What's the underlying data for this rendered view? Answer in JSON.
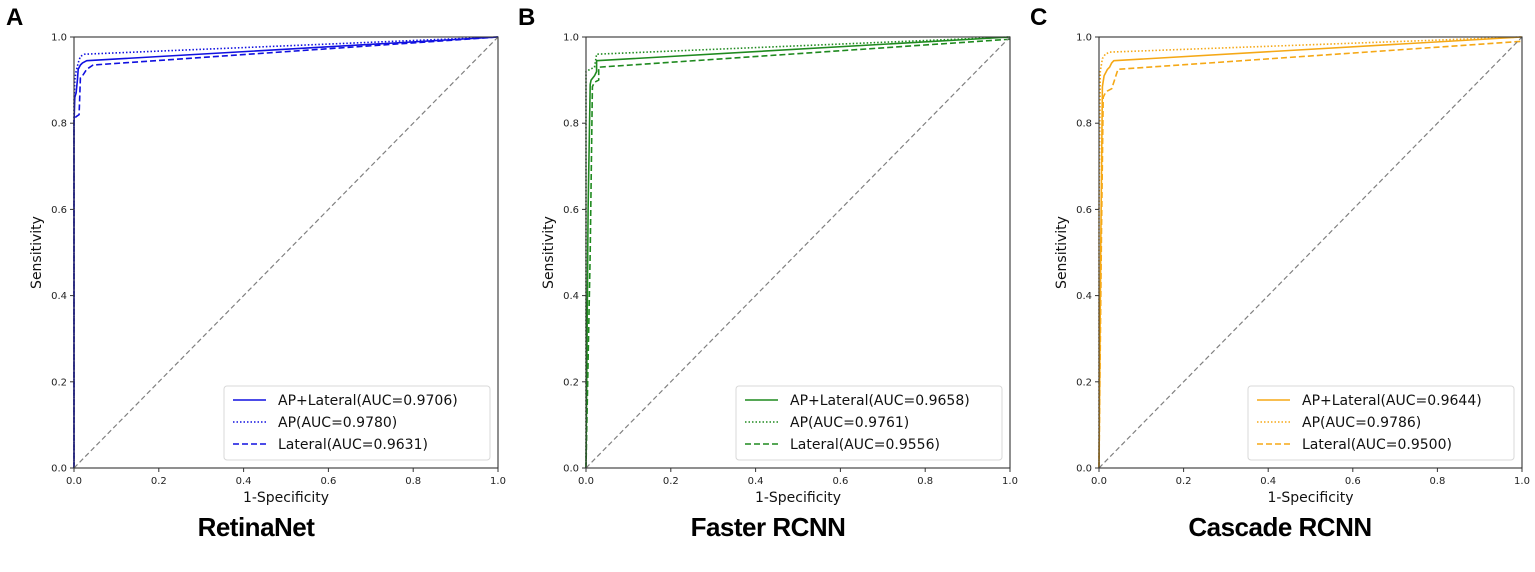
{
  "figure": {
    "panels": [
      {
        "letter": "A",
        "title": "RetinaNet",
        "color": "#1010e0"
      },
      {
        "letter": "B",
        "title": "Faster RCNN",
        "color": "#1f8a1f"
      },
      {
        "letter": "C",
        "title": "Cascade RCNN",
        "color": "#f5a816"
      }
    ]
  },
  "chart_data": [
    {
      "type": "line",
      "panel": "A",
      "title": "RetinaNet",
      "xlabel": "1-Specificity",
      "ylabel": "Sensitivity",
      "xlim": [
        0,
        1
      ],
      "ylim": [
        0,
        1
      ],
      "xticks": [
        "0.0",
        "0.2",
        "0.4",
        "0.6",
        "0.8",
        "1.0"
      ],
      "yticks": [
        "0.0",
        "0.2",
        "0.4",
        "0.6",
        "0.8",
        "1.0"
      ],
      "grid": false,
      "legend_position": "lower right",
      "color": "#1010e0",
      "series": [
        {
          "name": "AP+Lateral(AUC=0.9706)",
          "style": "solid",
          "x": [
            0,
            0,
            0.002,
            0.005,
            0.008,
            0.01,
            0.015,
            0.02,
            0.03,
            1.0
          ],
          "y": [
            0,
            0.8,
            0.86,
            0.87,
            0.9,
            0.925,
            0.935,
            0.94,
            0.945,
            1.0
          ]
        },
        {
          "name": "AP(AUC=0.9780)",
          "style": "dotted",
          "x": [
            0,
            0,
            0.002,
            0.005,
            0.01,
            0.015,
            0.025,
            1.0
          ],
          "y": [
            0,
            0.85,
            0.9,
            0.92,
            0.94,
            0.955,
            0.96,
            1.0
          ]
        },
        {
          "name": "Lateral(AUC=0.9631)",
          "style": "dashed",
          "x": [
            0,
            0,
            0.005,
            0.012,
            0.015,
            0.02,
            0.03,
            0.045,
            1.0
          ],
          "y": [
            0,
            0.81,
            0.815,
            0.82,
            0.905,
            0.91,
            0.925,
            0.935,
            1.0
          ]
        },
        {
          "name": "chance",
          "style": "dashed-gray",
          "x": [
            0,
            1
          ],
          "y": [
            0,
            1
          ]
        }
      ]
    },
    {
      "type": "line",
      "panel": "B",
      "title": "Faster RCNN",
      "xlabel": "1-Specificity",
      "ylabel": "Sensitivity",
      "xlim": [
        0,
        1
      ],
      "ylim": [
        0,
        1
      ],
      "xticks": [
        "0.0",
        "0.2",
        "0.4",
        "0.6",
        "0.8",
        "1.0"
      ],
      "yticks": [
        "0.0",
        "0.2",
        "0.4",
        "0.6",
        "0.8",
        "1.0"
      ],
      "grid": false,
      "legend_position": "lower right",
      "color": "#1f8a1f",
      "series": [
        {
          "name": "AP+Lateral(AUC=0.9658)",
          "style": "solid",
          "x": [
            0,
            0.005,
            0.01,
            0.012,
            0.02,
            0.025,
            0.025,
            1.0
          ],
          "y": [
            0,
            0.6,
            0.89,
            0.9,
            0.91,
            0.92,
            0.945,
            1.0
          ]
        },
        {
          "name": "AP(AUC=0.9761)",
          "style": "dotted",
          "x": [
            0,
            0,
            0.01,
            0.02,
            0.025,
            1.0
          ],
          "y": [
            0,
            0.92,
            0.925,
            0.93,
            0.96,
            1.0
          ]
        },
        {
          "name": "Lateral(AUC=0.9556)",
          "style": "dashed",
          "x": [
            0,
            0.01,
            0.015,
            0.02,
            0.03,
            0.03,
            1.0
          ],
          "y": [
            0,
            0.5,
            0.885,
            0.895,
            0.9,
            0.93,
            0.995
          ]
        },
        {
          "name": "chance",
          "style": "dashed-gray",
          "x": [
            0,
            1
          ],
          "y": [
            0,
            1
          ]
        }
      ]
    },
    {
      "type": "line",
      "panel": "C",
      "title": "Cascade RCNN",
      "xlabel": "1-Specificity",
      "ylabel": "Sensitivity",
      "xlim": [
        0,
        1
      ],
      "ylim": [
        0,
        1
      ],
      "xticks": [
        "0.0",
        "0.2",
        "0.4",
        "0.6",
        "0.8",
        "1.0"
      ],
      "yticks": [
        "0.0",
        "0.2",
        "0.4",
        "0.6",
        "0.8",
        "1.0"
      ],
      "grid": false,
      "legend_position": "lower right",
      "color": "#f5a816",
      "series": [
        {
          "name": "AP+Lateral(AUC=0.9644)",
          "style": "solid",
          "x": [
            0,
            0.004,
            0.008,
            0.012,
            0.02,
            0.025,
            0.03,
            0.035,
            1.0
          ],
          "y": [
            0,
            0.5,
            0.885,
            0.91,
            0.925,
            0.93,
            0.94,
            0.945,
            1.0
          ]
        },
        {
          "name": "AP(AUC=0.9786)",
          "style": "dotted",
          "x": [
            0,
            0,
            0.003,
            0.008,
            0.015,
            0.025,
            1.0
          ],
          "y": [
            0,
            0.6,
            0.92,
            0.95,
            0.96,
            0.965,
            1.0
          ]
        },
        {
          "name": "Lateral(AUC=0.9500)",
          "style": "dashed",
          "x": [
            0,
            0.006,
            0.01,
            0.015,
            0.02,
            0.03,
            0.04,
            0.045,
            1.0
          ],
          "y": [
            0,
            0.55,
            0.86,
            0.87,
            0.875,
            0.88,
            0.91,
            0.925,
            0.99
          ]
        },
        {
          "name": "chance",
          "style": "dashed-gray",
          "x": [
            0,
            1
          ],
          "y": [
            0,
            1
          ]
        }
      ]
    }
  ]
}
